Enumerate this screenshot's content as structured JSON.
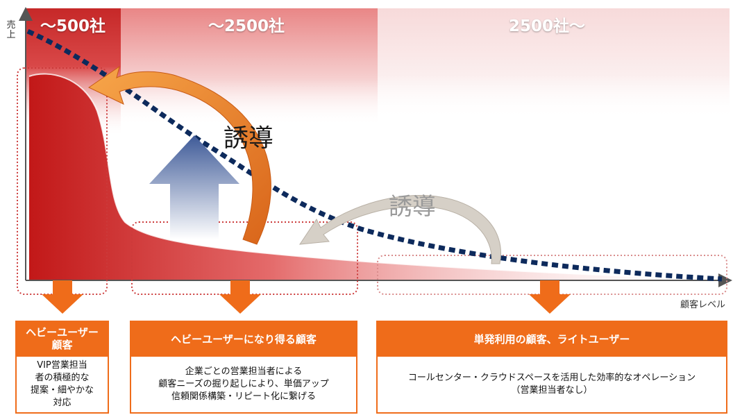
{
  "segments": [
    "～500社",
    "～2500社",
    "2500社～"
  ],
  "axis": {
    "y_label": "売上",
    "x_label": "顧客レベル"
  },
  "arrow_labels": {
    "main": "誘導",
    "secondary": "誘導"
  },
  "boxes": [
    {
      "title": "ヘビーユーザー顧客",
      "title_lines": [
        "ヘビーユーザー",
        "顧客"
      ],
      "body_lines": [
        "VIP営業担当",
        "者の積極的な",
        "提案・細やかな",
        "対応"
      ]
    },
    {
      "title": "ヘビーユーザーになり得る顧客",
      "body_lines": [
        "企業ごとの営業担当者による",
        "顧客ニーズの掘り起しにより、単価アップ",
        "信頼関係構築・リピート化に繋げる"
      ]
    },
    {
      "title": "単発利用の顧客、ライトユーザー",
      "body_lines": [
        "コールセンター・クラウドスペースを活用した効率的なオペレーション",
        "（営業担当者なし）"
      ]
    }
  ],
  "colors": {
    "segment_dark": "#c62828",
    "curve_red": "#cc1f1f",
    "dotted_line": "#0d2a5c",
    "orange": "#ef6c1a",
    "up_arrow": "#5b74a8",
    "gray_arrow": "#c9c4bc"
  },
  "icons": [
    "up-arrow-icon",
    "curved-arrow-icon",
    "down-arrow-icon"
  ]
}
